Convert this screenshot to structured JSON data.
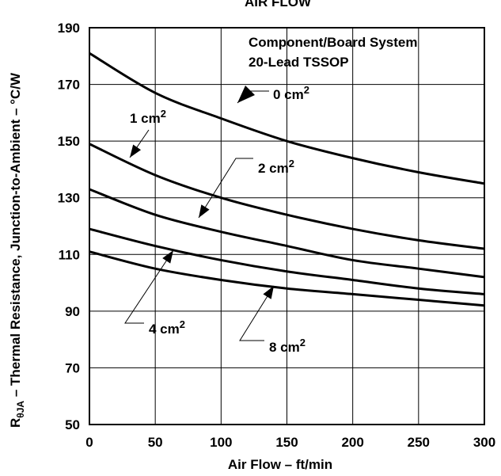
{
  "chart_data": {
    "type": "line",
    "title": "AIR FLOW",
    "xlabel": "Air Flow – ft/min",
    "ylabel_main": "R",
    "ylabel_sub": "θJA",
    "ylabel_rest": " – Thermal Resistance, Junction-to-Ambient – °C/W",
    "xlim": [
      0,
      300
    ],
    "ylim": [
      50,
      190
    ],
    "xticks": [
      0,
      50,
      100,
      150,
      200,
      250,
      300
    ],
    "yticks": [
      50,
      70,
      90,
      110,
      130,
      150,
      170,
      190
    ],
    "grid": true,
    "annotation_lines": [
      "Component/Board System",
      "20-Lead TSSOP"
    ],
    "x": [
      0,
      50,
      100,
      150,
      200,
      250,
      300
    ],
    "series": [
      {
        "label": "0 cm",
        "sup": "2",
        "values": [
          181,
          167,
          158,
          150,
          144,
          139,
          135
        ]
      },
      {
        "label": "1 cm",
        "sup": "2",
        "values": [
          149,
          138,
          130,
          124,
          119,
          115,
          112
        ]
      },
      {
        "label": "2 cm",
        "sup": "2",
        "values": [
          133,
          124,
          118,
          113,
          108,
          105,
          102
        ]
      },
      {
        "label": "4 cm",
        "sup": "2",
        "values": [
          119,
          113,
          108,
          104,
          101,
          98,
          96
        ]
      },
      {
        "label": "8 cm",
        "sup": "2",
        "values": [
          111,
          105,
          101,
          98,
          96,
          94,
          92
        ]
      }
    ]
  }
}
